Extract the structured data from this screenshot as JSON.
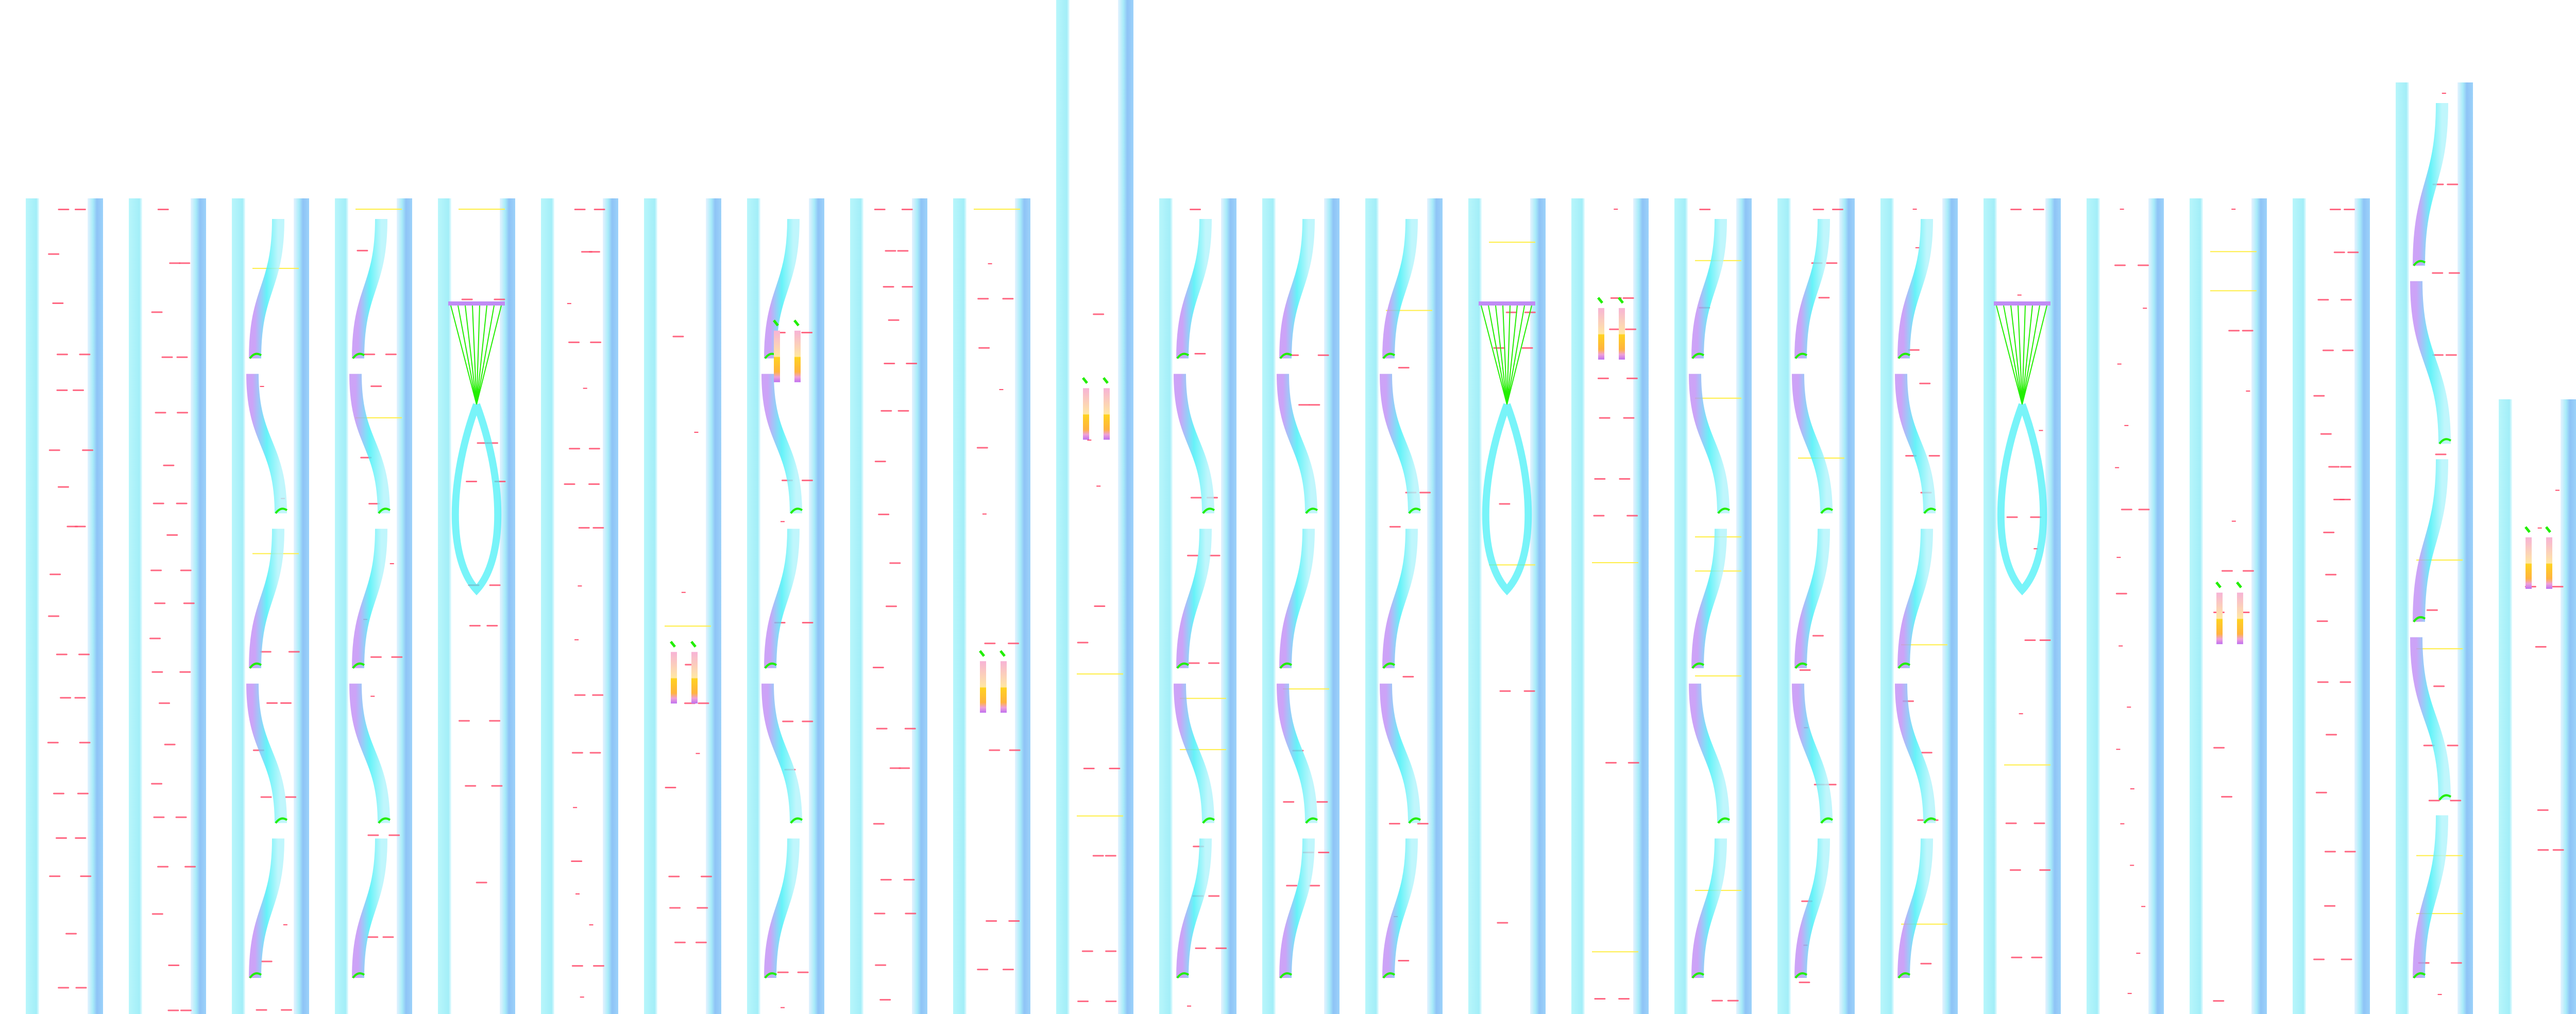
{
  "palette": {
    "background": "#ffffff",
    "left_band": "#9ff3f9",
    "right_band": "#8cc4f7",
    "dash": "#ff4d6d",
    "ribbon_cyan": "#3ff0f7",
    "ribbon_violet": "#c08cf5",
    "bar_pink": "#f7b3d6",
    "bar_yellow": "#ffd21f",
    "accent_green": "#22ee00",
    "dash_yellow": "#ffee44"
  }
}
